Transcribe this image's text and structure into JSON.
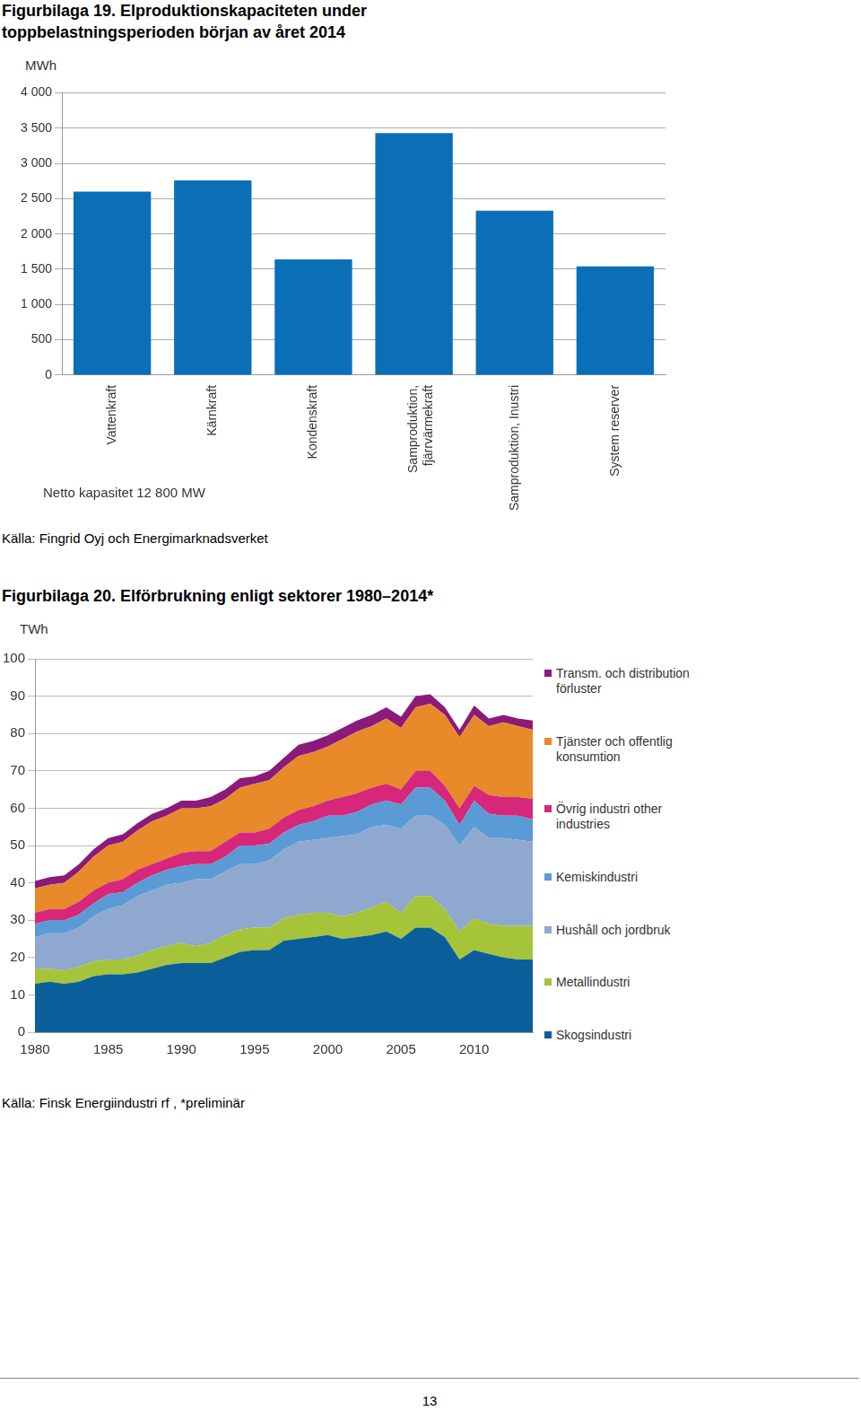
{
  "chart_data": [
    {
      "type": "bar",
      "title": "Figurbilaga 19. Elproduktionskapaciteten under toppbelastningsperioden början av året 2014",
      "y_label": "MWh",
      "annotations": [
        "Netto kapasitet 12 800 MW"
      ],
      "source": "Källa: Fingrid Oyj och Energimarknadsverket",
      "categories": [
        "Vattenkraft",
        "Kärnkraft",
        "Kondenskraft",
        "Samproduktion, fjärrvärmekraft",
        "Samproduktion, Inustri",
        "System reserver"
      ],
      "values": [
        2600,
        2760,
        1640,
        3430,
        2330,
        1540
      ],
      "color": "#0b6fb8",
      "ylim": [
        0,
        4000
      ],
      "yticks": [
        0,
        500,
        {
          "value": 1000,
          "label": "1 000"
        },
        {
          "value": 1500,
          "label": "1 500"
        },
        {
          "value": 2000,
          "label": "2 000"
        },
        {
          "value": 2500,
          "label": "2 500"
        },
        {
          "value": 3000,
          "label": "3 000"
        },
        {
          "value": 3500,
          "label": "3 500"
        },
        {
          "value": 4000,
          "label": "4 000"
        }
      ],
      "grid": true
    },
    {
      "type": "area",
      "title": "Figurbilaga 20. Elförbrukning enligt sektorer 1980–2014*",
      "y_label": "TWh",
      "source": "Källa: Finsk Energiindustri rf , *preliminär",
      "stacked": true,
      "legend": "right",
      "grid": true,
      "x": [
        1980,
        1981,
        1982,
        1983,
        1984,
        1985,
        1986,
        1987,
        1988,
        1989,
        1990,
        1991,
        1992,
        1993,
        1994,
        1995,
        1996,
        1997,
        1998,
        1999,
        2000,
        2001,
        2002,
        2003,
        2004,
        2005,
        2006,
        2007,
        2008,
        2009,
        2010,
        2011,
        2012,
        2013,
        2014
      ],
      "xlim": [
        1980,
        2014
      ],
      "xticks": [
        1980,
        1985,
        1990,
        1995,
        2000,
        2005,
        2010
      ],
      "ylim": [
        0,
        100
      ],
      "yticks": [
        0,
        10,
        20,
        30,
        40,
        50,
        60,
        70,
        80,
        90,
        100
      ],
      "series": [
        {
          "name": "Skogsindustri",
          "color": "#0a5f9a",
          "values": [
            13,
            13.5,
            13,
            13.5,
            15,
            15.5,
            15.5,
            16,
            17,
            18,
            18.5,
            18.5,
            18.5,
            20,
            21.5,
            22,
            22,
            24.5,
            25,
            25.5,
            26,
            25,
            25.5,
            26,
            27,
            25,
            28,
            28,
            25.5,
            19.5,
            22,
            21,
            20,
            19.5,
            19.5
          ]
        },
        {
          "name": "Metallindustri",
          "color": "#a5c43a",
          "values": [
            4,
            3.5,
            3.5,
            4,
            4,
            4,
            4,
            4.5,
            5,
            5,
            5.5,
            4.5,
            5.5,
            6,
            6,
            6,
            6,
            6,
            6.5,
            6.5,
            6,
            6,
            6.5,
            7.5,
            8,
            7,
            8.5,
            8.5,
            7.5,
            7.5,
            8.5,
            8,
            8.5,
            9,
            9
          ]
        },
        {
          "name": "Hushåll och jordbruk",
          "color": "#8fa8d0",
          "values": [
            8.5,
            9.5,
            10,
            10.5,
            12,
            13.5,
            14.5,
            16,
            16,
            16.5,
            16,
            18,
            17,
            17,
            17.5,
            17,
            18,
            18.5,
            19.5,
            19.5,
            20,
            21.5,
            21,
            21.5,
            20.5,
            22.5,
            21.5,
            21.5,
            22.5,
            23,
            24.5,
            23,
            23.5,
            23,
            22.5
          ]
        },
        {
          "name": "Kemiskindustri",
          "color": "#5b9bd5",
          "values": [
            3.5,
            3.5,
            3.5,
            3.5,
            3.5,
            4,
            3.5,
            3.5,
            4,
            4,
            4.5,
            4,
            4,
            4,
            5,
            5,
            4.5,
            4.5,
            4.5,
            5,
            6,
            5.5,
            6,
            6,
            6.5,
            6.5,
            7.5,
            7.5,
            6.5,
            5.5,
            7,
            6.5,
            6,
            6.5,
            6
          ]
        },
        {
          "name": "Övrig industri other industries",
          "color": "#d6277a",
          "values": [
            3,
            3,
            3,
            3.5,
            3.5,
            3,
            3.5,
            3.5,
            3,
            3,
            3.5,
            3.5,
            3.5,
            4,
            3.5,
            3.5,
            4,
            4,
            4,
            4,
            4,
            5,
            5,
            4.5,
            4.5,
            4,
            4.5,
            4.5,
            4,
            4.5,
            4,
            5,
            5,
            5,
            5.5
          ]
        },
        {
          "name": "Tjänster och offentlig konsumtion",
          "color": "#e8892a",
          "values": [
            6.5,
            6.5,
            7,
            8,
            9,
            10,
            10,
            10.5,
            11.5,
            11.5,
            12,
            11.5,
            12,
            11.5,
            12,
            13,
            13,
            13.5,
            14.5,
            14.5,
            14.5,
            15.5,
            16.5,
            16.5,
            17.5,
            16.5,
            17,
            18,
            19,
            19,
            19,
            18.5,
            20,
            19,
            18.5
          ]
        },
        {
          "name": "Transm. och distribution förluster",
          "color": "#8b1a7a",
          "values": [
            2,
            2,
            2,
            2,
            2,
            2,
            2,
            2,
            2,
            2,
            2,
            2,
            2.5,
            2.5,
            2.5,
            2,
            2.5,
            2.5,
            3,
            3,
            3,
            3,
            3,
            3,
            3,
            3,
            3,
            2.5,
            2,
            2,
            2.5,
            2,
            2,
            2,
            2.5
          ]
        }
      ]
    }
  ],
  "page_number": 13
}
